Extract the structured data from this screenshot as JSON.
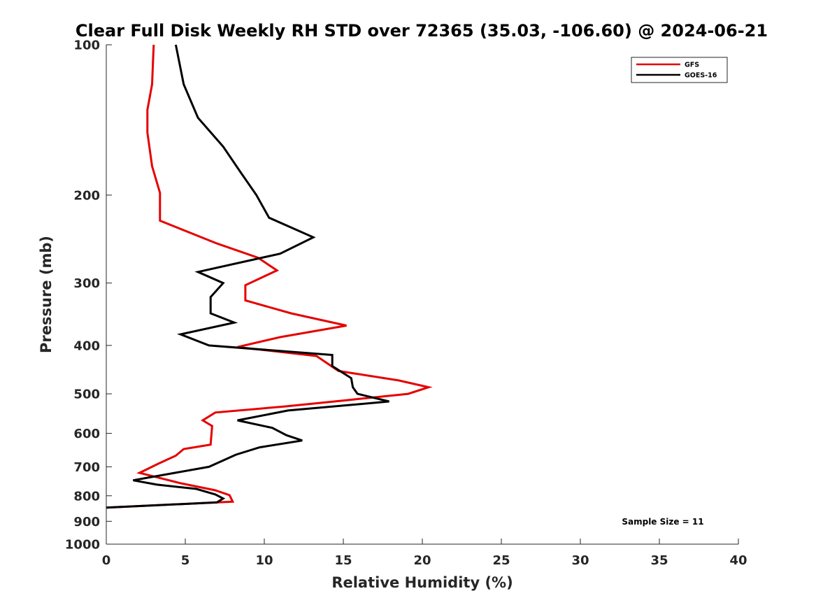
{
  "chart_data": {
    "type": "line",
    "title": "Clear Full Disk Weekly RH STD over 72365 (35.03, -106.60) @ 2024-06-21",
    "xlabel": "Relative Humidity (%)",
    "ylabel": "Pressure (mb)",
    "xlim": [
      0,
      40
    ],
    "ylim": [
      100,
      1000
    ],
    "y_scale": "log",
    "y_reversed": true,
    "x_ticks": [
      0,
      5,
      10,
      15,
      20,
      25,
      30,
      35,
      40
    ],
    "y_ticks": [
      100,
      200,
      300,
      400,
      500,
      600,
      700,
      800,
      900,
      1000
    ],
    "grid": false,
    "legend_position": "top-right",
    "annotation": "Sample Size = 11",
    "series": [
      {
        "name": "GFS",
        "color": "#e60000",
        "points": [
          [
            3.0,
            100
          ],
          [
            2.9,
            120
          ],
          [
            2.6,
            135
          ],
          [
            2.6,
            150
          ],
          [
            2.9,
            175
          ],
          [
            3.4,
            198
          ],
          [
            3.4,
            225
          ],
          [
            7.0,
            250
          ],
          [
            9.6,
            267
          ],
          [
            10.8,
            283
          ],
          [
            8.8,
            303
          ],
          [
            8.8,
            325
          ],
          [
            11.7,
            345
          ],
          [
            15.2,
            365
          ],
          [
            11.0,
            385
          ],
          [
            8.3,
            403
          ],
          [
            13.3,
            420
          ],
          [
            14.7,
            450
          ],
          [
            18.5,
            470
          ],
          [
            20.4,
            485
          ],
          [
            19.1,
            500
          ],
          [
            15.2,
            515
          ],
          [
            11.3,
            530
          ],
          [
            6.9,
            545
          ],
          [
            6.1,
            565
          ],
          [
            6.7,
            580
          ],
          [
            6.6,
            632
          ],
          [
            4.9,
            645
          ],
          [
            4.4,
            665
          ],
          [
            3.3,
            690
          ],
          [
            2.1,
            720
          ],
          [
            4.7,
            755
          ],
          [
            6.9,
            780
          ],
          [
            7.8,
            798
          ],
          [
            8.0,
            822
          ],
          [
            0.0,
            845
          ]
        ]
      },
      {
        "name": "GOES-16",
        "color": "#000000",
        "points": [
          [
            4.4,
            100
          ],
          [
            4.9,
            120
          ],
          [
            5.8,
            140
          ],
          [
            7.4,
            160
          ],
          [
            8.5,
            180
          ],
          [
            9.5,
            200
          ],
          [
            10.3,
            222
          ],
          [
            13.1,
            243
          ],
          [
            11.0,
            262
          ],
          [
            5.8,
            285
          ],
          [
            7.4,
            300
          ],
          [
            6.6,
            320
          ],
          [
            6.6,
            345
          ],
          [
            8.1,
            360
          ],
          [
            4.7,
            380
          ],
          [
            6.5,
            400
          ],
          [
            14.3,
            418
          ],
          [
            14.3,
            440
          ],
          [
            15.5,
            465
          ],
          [
            15.6,
            485
          ],
          [
            15.9,
            500
          ],
          [
            17.9,
            518
          ],
          [
            11.5,
            540
          ],
          [
            8.3,
            565
          ],
          [
            10.5,
            585
          ],
          [
            11.4,
            605
          ],
          [
            12.4,
            620
          ],
          [
            9.7,
            640
          ],
          [
            8.2,
            662
          ],
          [
            6.5,
            700
          ],
          [
            1.7,
            745
          ],
          [
            3.2,
            760
          ],
          [
            5.7,
            775
          ],
          [
            6.9,
            795
          ],
          [
            7.4,
            810
          ],
          [
            7.0,
            825
          ],
          [
            0.0,
            845
          ]
        ]
      }
    ]
  }
}
